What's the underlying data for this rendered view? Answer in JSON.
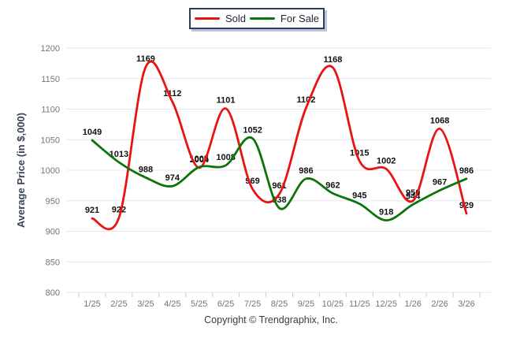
{
  "legend": {
    "items": [
      {
        "label": "Sold",
        "color": "#e81414"
      },
      {
        "label": "For Sale",
        "color": "#0a750a"
      }
    ]
  },
  "y_axis": {
    "title": "Average Price (in $,000)"
  },
  "footer": {
    "text": "Copyright © Trendgraphix, Inc."
  },
  "chart_data": {
    "type": "line",
    "title": "",
    "categories": [
      "1/25",
      "2/25",
      "3/25",
      "4/25",
      "5/25",
      "6/25",
      "7/25",
      "8/25",
      "9/25",
      "10/25",
      "11/25",
      "12/25",
      "1/26",
      "2/26",
      "3/26"
    ],
    "series": [
      {
        "name": "Sold",
        "color": "#e81414",
        "values": [
          921,
          922,
          1169,
          1112,
          1004,
          1101,
          969,
          961,
          1102,
          1168,
          1015,
          1002,
          950,
          1068,
          929
        ]
      },
      {
        "name": "For Sale",
        "color": "#0a750a",
        "values": [
          1049,
          1013,
          988,
          974,
          1005,
          1008,
          1052,
          938,
          986,
          962,
          945,
          918,
          944,
          967,
          986
        ]
      }
    ],
    "xlabel": "",
    "ylabel": "Average Price (in $,000)",
    "ylim": [
      800,
      1200
    ],
    "ytick_step": 50,
    "grid": "horizontal",
    "legend_position": "top-center",
    "smoothing": "spline",
    "data_labels": true
  }
}
